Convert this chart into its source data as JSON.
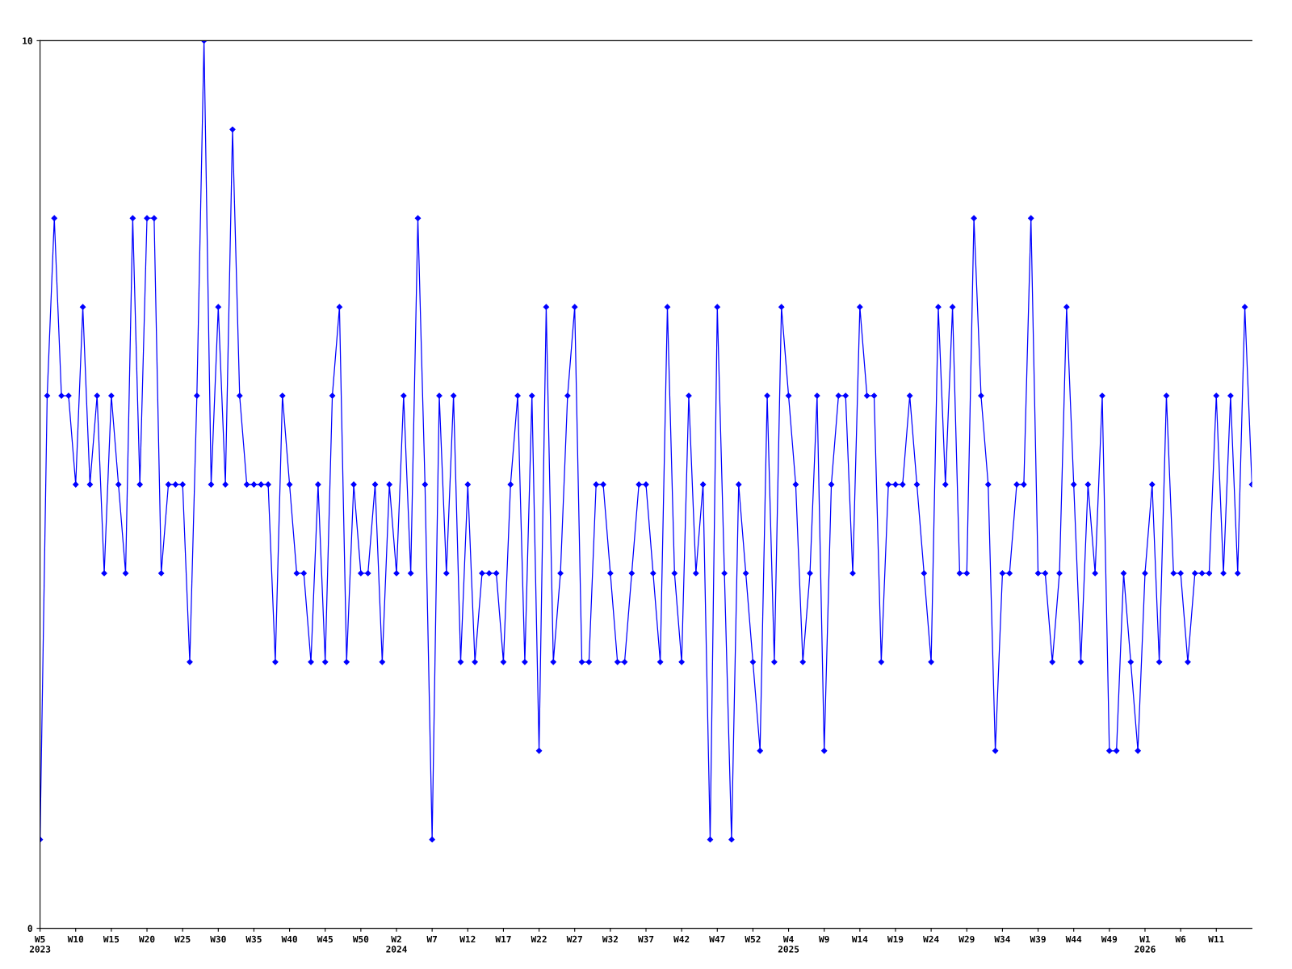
{
  "chart_data": {
    "type": "line",
    "ylim": [
      0,
      10
    ],
    "yticks": [
      0,
      10
    ],
    "grid": false,
    "marker": "diamond",
    "line_style": "solid",
    "categories": [
      "W5\n2023",
      null,
      null,
      null,
      null,
      "W10",
      null,
      null,
      null,
      null,
      "W15",
      null,
      null,
      null,
      null,
      "W20",
      null,
      null,
      null,
      null,
      "W25",
      null,
      null,
      null,
      null,
      "W30",
      null,
      null,
      null,
      null,
      "W35",
      null,
      null,
      null,
      null,
      "W40",
      null,
      null,
      null,
      null,
      "W45",
      null,
      null,
      null,
      null,
      "W50",
      null,
      null,
      null,
      null,
      "W2\n2024",
      null,
      null,
      null,
      null,
      "W7",
      null,
      null,
      null,
      null,
      "W12",
      null,
      null,
      null,
      null,
      "W17",
      null,
      null,
      null,
      null,
      "W22",
      null,
      null,
      null,
      null,
      "W27",
      null,
      null,
      null,
      null,
      "W32",
      null,
      null,
      null,
      null,
      "W37",
      null,
      null,
      null,
      null,
      "W42",
      null,
      null,
      null,
      null,
      "W47",
      null,
      null,
      null,
      null,
      "W52",
      null,
      null,
      null,
      null,
      "W4\n2025",
      null,
      null,
      null,
      null,
      "W9",
      null,
      null,
      null,
      null,
      "W14",
      null,
      null,
      null,
      null,
      "W19",
      null,
      null,
      null,
      null,
      "W24",
      null,
      null,
      null,
      null,
      "W29",
      null,
      null,
      null,
      null,
      "W34",
      null,
      null,
      null,
      null,
      "W39",
      null,
      null,
      null,
      null,
      "W44",
      null,
      null,
      null,
      null,
      "W49",
      null,
      null,
      null,
      null,
      "W1\n2026",
      null,
      null,
      null,
      null,
      "W6",
      null,
      null,
      null,
      null,
      "W11",
      null,
      null,
      null,
      null,
      null
    ],
    "series": [
      {
        "color": "#0000ff",
        "values": [
          1,
          6,
          8,
          6,
          6,
          5,
          7,
          5,
          6,
          4,
          6,
          5,
          4,
          8,
          5,
          8,
          8,
          4,
          5,
          5,
          5,
          3,
          6,
          10,
          5,
          7,
          5,
          9,
          6,
          5,
          5,
          5,
          5,
          3,
          6,
          5,
          4,
          4,
          3,
          5,
          3,
          6,
          7,
          3,
          5,
          4,
          4,
          5,
          3,
          5,
          4,
          6,
          4,
          8,
          5,
          1,
          6,
          4,
          6,
          3,
          5,
          3,
          4,
          4,
          4,
          3,
          5,
          6,
          3,
          6,
          2,
          7,
          3,
          4,
          6,
          7,
          3,
          3,
          5,
          5,
          4,
          3,
          3,
          4,
          5,
          5,
          4,
          3,
          7,
          4,
          3,
          6,
          4,
          5,
          1,
          7,
          4,
          1,
          5,
          4,
          3,
          2,
          6,
          3,
          7,
          6,
          5,
          3,
          4,
          6,
          2,
          5,
          6,
          6,
          4,
          7,
          6,
          6,
          3,
          5,
          5,
          5,
          6,
          5,
          4,
          3,
          7,
          5,
          7,
          4,
          4,
          8,
          6,
          5,
          2,
          4,
          4,
          5,
          5,
          8,
          4,
          4,
          3,
          4,
          7,
          5,
          3,
          5,
          4,
          6,
          2,
          2,
          4,
          3,
          2,
          4,
          5,
          3,
          6,
          4,
          4,
          3,
          4,
          4,
          4,
          6,
          4,
          6,
          4,
          7,
          5
        ]
      }
    ]
  }
}
